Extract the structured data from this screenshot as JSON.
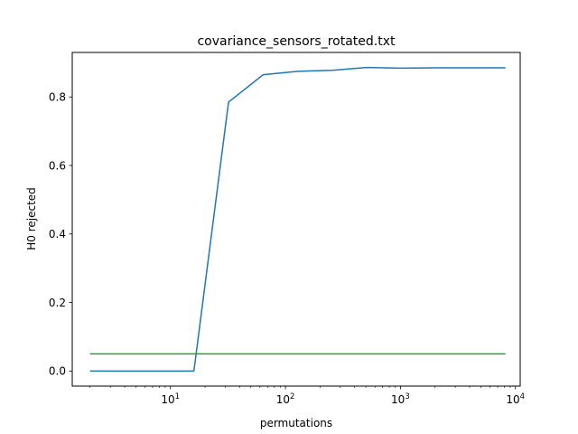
{
  "chart_data": {
    "type": "line",
    "title": "covariance_sensors_rotated.txt",
    "xlabel": "permutations",
    "ylabel": "H0 rejected",
    "xscale": "log",
    "xlim": [
      1.4,
      11000
    ],
    "ylim": [
      -0.044,
      0.93
    ],
    "grid": false,
    "legend": "none",
    "x": [
      2,
      4,
      8,
      16,
      32,
      64,
      128,
      256,
      512,
      1024,
      2048,
      4096,
      8192
    ],
    "series": [
      {
        "color": "#1f77b4",
        "values": [
          0.0,
          0.0,
          0.0,
          0.0,
          0.785,
          0.865,
          0.875,
          0.878,
          0.886,
          0.884,
          0.885,
          0.885,
          0.885
        ]
      },
      {
        "color": "#2ca02c",
        "values": [
          0.05,
          0.05,
          0.05,
          0.05,
          0.05,
          0.05,
          0.05,
          0.05,
          0.05,
          0.05,
          0.05,
          0.05,
          0.05
        ]
      }
    ],
    "yticks": [
      {
        "value": 0.0,
        "label": "0.0"
      },
      {
        "value": 0.2,
        "label": "0.2"
      },
      {
        "value": 0.4,
        "label": "0.4"
      },
      {
        "value": 0.6,
        "label": "0.6"
      },
      {
        "value": 0.8,
        "label": "0.8"
      }
    ],
    "xticks": [
      {
        "value": 10,
        "base": "10",
        "exp": "1"
      },
      {
        "value": 100,
        "base": "10",
        "exp": "2"
      },
      {
        "value": 1000,
        "base": "10",
        "exp": "3"
      },
      {
        "value": 10000,
        "base": "10",
        "exp": "4"
      }
    ]
  }
}
